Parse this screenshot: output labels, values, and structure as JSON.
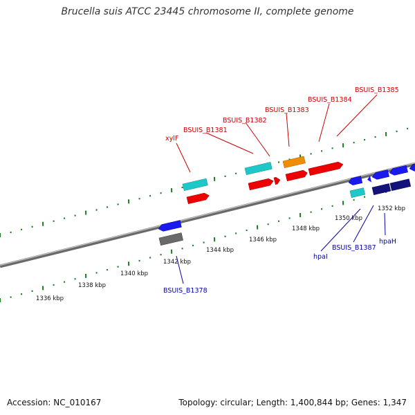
{
  "title": "Brucella suis ATCC 23445 chromosome II, complete genome",
  "footer": {
    "accession": "Accession: NC_010167",
    "summary": "Topology: circular; Length: 1,400,844 bp; Genes: 1,347"
  },
  "colors": {
    "backbone": "#8a8a8a",
    "tick": "#1e7a1e",
    "red_gene": "#ee0000",
    "cyan_gene": "#1ec8c8",
    "orange_gene": "#f08c00",
    "blue_gene": "#1a1aee",
    "navy_gene": "#12127a",
    "gray_gene": "#6a6a6a",
    "label_top": "#cc0000",
    "label_bottom": "#0000aa"
  },
  "ticks": [
    "1336 kbp",
    "1338 kbp",
    "1340 kbp",
    "1342 kbp",
    "1344 kbp",
    "1346 kbp",
    "1348 kbp",
    "1350 kbp",
    "1352 kbp"
  ],
  "genes_top": [
    "xylF",
    "BSUIS_B1381",
    "BSUIS_B1382",
    "BSUIS_B1383",
    "BSUIS_B1384",
    "BSUIS_B1385"
  ],
  "genes_bottom": [
    "BSUIS_B1378",
    "hpaI",
    "BSUIS_B1387",
    "hpaH"
  ]
}
